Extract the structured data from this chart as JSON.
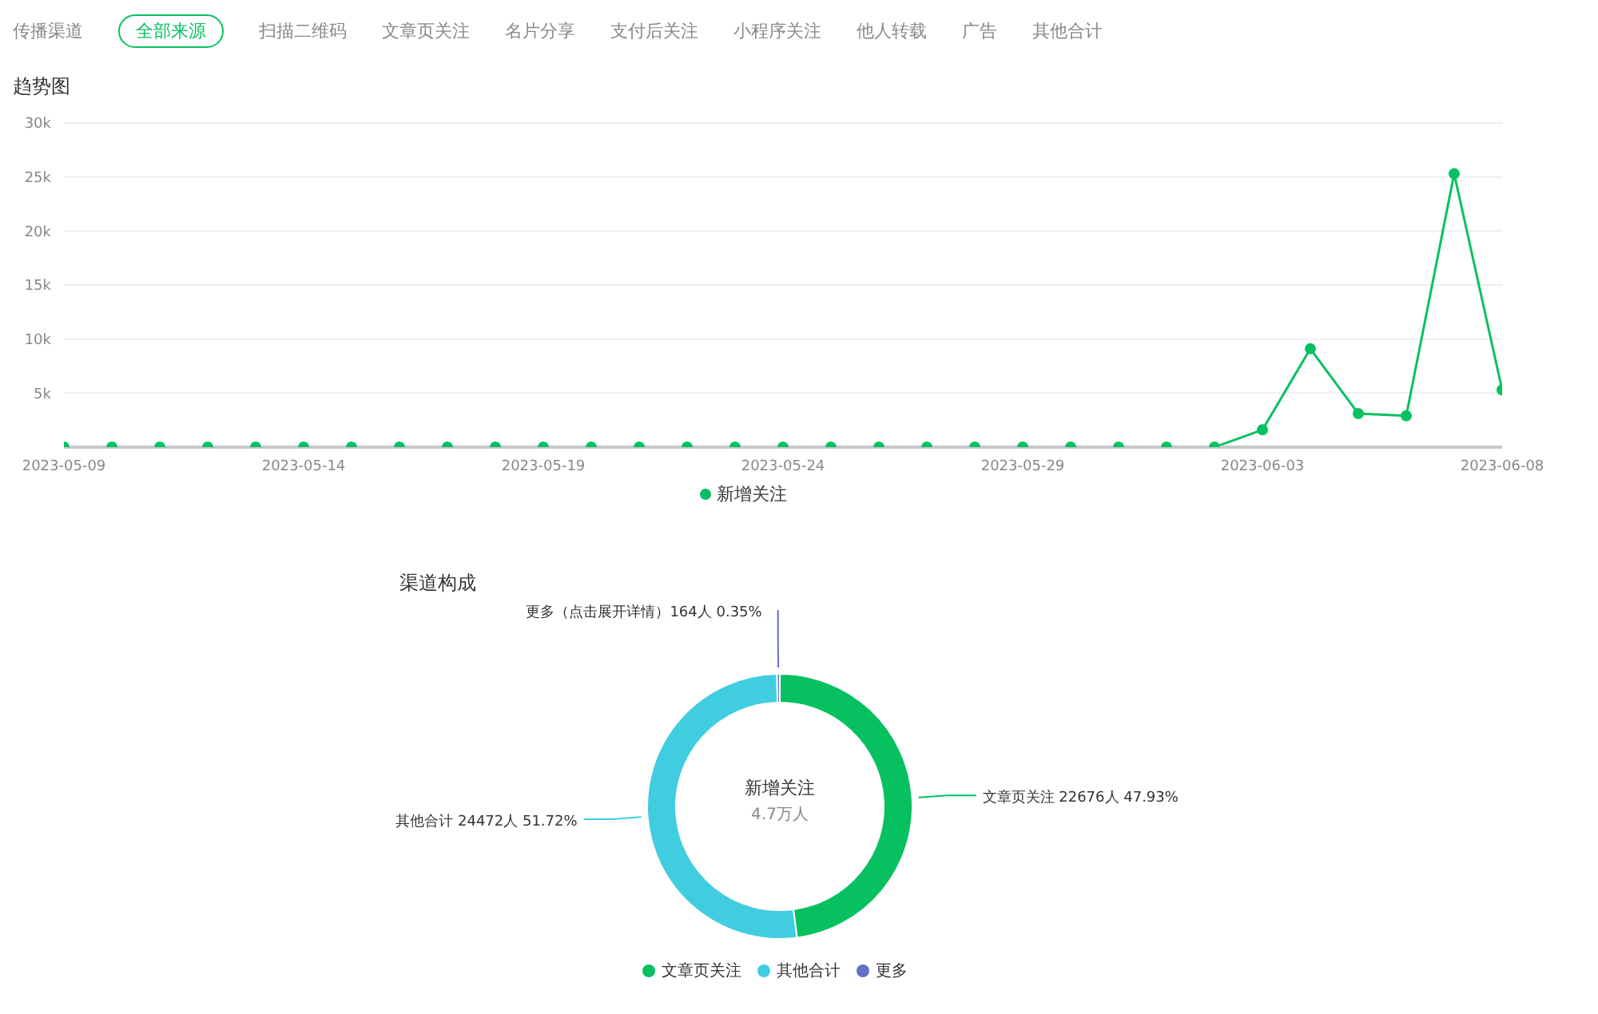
{
  "chart_data": [
    {
      "type": "other",
      "title": "传播渠道",
      "annotations": [
        "全部来源",
        "扫描二维码",
        "文章页关注",
        "名片分享",
        "支付后关注",
        "小程序关注",
        "他人转载",
        "广告",
        "其他合计"
      ]
    },
    {
      "type": "line",
      "title": "趋势图",
      "x": [
        "2023-05-09",
        "2023-05-10",
        "2023-05-11",
        "2023-05-12",
        "2023-05-13",
        "2023-05-14",
        "2023-05-15",
        "2023-05-16",
        "2023-05-17",
        "2023-05-18",
        "2023-05-19",
        "2023-05-20",
        "2023-05-21",
        "2023-05-22",
        "2023-05-23",
        "2023-05-24",
        "2023-05-25",
        "2023-05-26",
        "2023-05-27",
        "2023-05-28",
        "2023-05-29",
        "2023-05-30",
        "2023-05-31",
        "2023-06-01",
        "2023-06-02",
        "2023-06-03",
        "2023-06-04",
        "2023-06-05",
        "2023-06-06",
        "2023-06-07",
        "2023-06-08"
      ],
      "series": [
        {
          "name": "新增关注",
          "color": "#07c160",
          "values": [
            0,
            0,
            0,
            0,
            0,
            0,
            0,
            0,
            0,
            0,
            0,
            0,
            0,
            0,
            0,
            0,
            0,
            0,
            0,
            0,
            0,
            0,
            0,
            0,
            0,
            1600,
            9100,
            3100,
            2900,
            25300,
            5300
          ]
        }
      ],
      "xlim": [
        "2023-05-09",
        "2023-06-08"
      ],
      "xticks": [
        "2023-05-09",
        "2023-05-14",
        "2023-05-19",
        "2023-05-24",
        "2023-05-29",
        "2023-06-03",
        "2023-06-08"
      ],
      "ylim": [
        0,
        30000
      ],
      "yticks": [
        {
          "value": 5000,
          "label": "5k"
        },
        {
          "value": 10000,
          "label": "10k"
        },
        {
          "value": 15000,
          "label": "15k"
        },
        {
          "value": 20000,
          "label": "20k"
        },
        {
          "value": 25000,
          "label": "25k"
        },
        {
          "value": 30000,
          "label": "30k"
        }
      ],
      "grid": "y",
      "legend": "bottom",
      "marker": "circle",
      "line_style": "solid"
    },
    {
      "type": "donut",
      "title": "渠道构成",
      "categories": [
        "文章页关注",
        "其他合计",
        "更多"
      ],
      "values": [
        22676,
        24472,
        164
      ],
      "colors": [
        "#07c160",
        "#40cde0",
        "#6470c8"
      ],
      "value_labels": [
        "文章页关注 22676人 47.93%",
        "其他合计 24472人 51.72%",
        "更多（点击展开详情）164人 0.35%"
      ],
      "annotations": [
        "新增关注",
        "4.7万人"
      ],
      "legend": "bottom"
    }
  ]
}
